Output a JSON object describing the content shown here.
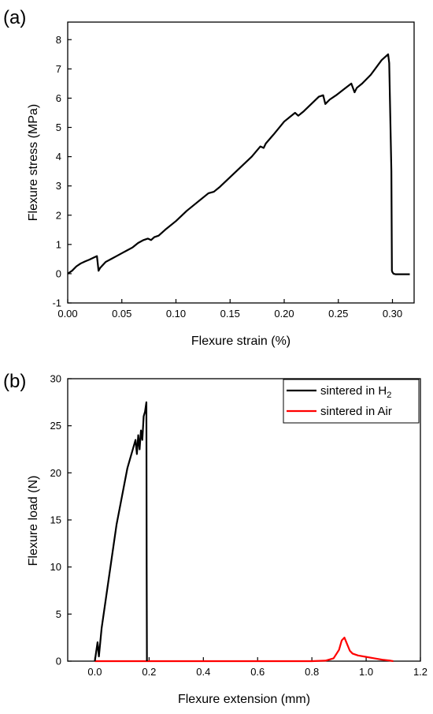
{
  "chart_data": [
    {
      "panel_label": "(a)",
      "type": "line",
      "xlabel": "Flexure strain (%)",
      "ylabel": "Flexure stress (MPa)",
      "xlim": [
        0.0,
        0.32
      ],
      "ylim": [
        -1,
        8.6
      ],
      "xticks": [
        "0.00",
        "0.05",
        "0.10",
        "0.15",
        "0.20",
        "0.25",
        "0.30"
      ],
      "xtick_values": [
        0.0,
        0.05,
        0.1,
        0.15,
        0.2,
        0.25,
        0.3
      ],
      "yticks": [
        "-1",
        "0",
        "1",
        "2",
        "3",
        "4",
        "5",
        "6",
        "7",
        "8"
      ],
      "ytick_values": [
        -1,
        0,
        1,
        2,
        3,
        4,
        5,
        6,
        7,
        8
      ],
      "grid": false,
      "series": [
        {
          "color": "#000000",
          "x": [
            0.0,
            0.004,
            0.008,
            0.012,
            0.016,
            0.02,
            0.024,
            0.027,
            0.0285,
            0.03,
            0.035,
            0.04,
            0.045,
            0.05,
            0.055,
            0.06,
            0.065,
            0.07,
            0.074,
            0.077,
            0.08,
            0.084,
            0.09,
            0.1,
            0.11,
            0.12,
            0.13,
            0.135,
            0.14,
            0.15,
            0.16,
            0.17,
            0.178,
            0.181,
            0.183,
            0.19,
            0.2,
            0.205,
            0.21,
            0.213,
            0.218,
            0.225,
            0.232,
            0.236,
            0.238,
            0.242,
            0.248,
            0.255,
            0.262,
            0.265,
            0.267,
            0.272,
            0.28,
            0.29,
            0.296,
            0.297,
            0.299,
            0.2995,
            0.3,
            0.301,
            0.303,
            0.31,
            0.316
          ],
          "y": [
            0.0,
            0.1,
            0.25,
            0.35,
            0.42,
            0.48,
            0.55,
            0.6,
            0.1,
            0.2,
            0.4,
            0.5,
            0.6,
            0.7,
            0.8,
            0.9,
            1.05,
            1.15,
            1.2,
            1.15,
            1.25,
            1.3,
            1.5,
            1.8,
            2.15,
            2.45,
            2.75,
            2.8,
            2.95,
            3.3,
            3.65,
            4.0,
            4.35,
            4.3,
            4.45,
            4.75,
            5.2,
            5.35,
            5.5,
            5.4,
            5.55,
            5.8,
            6.05,
            6.1,
            5.8,
            5.95,
            6.1,
            6.3,
            6.5,
            6.2,
            6.35,
            6.5,
            6.8,
            7.3,
            7.5,
            7.2,
            3.5,
            0.1,
            0.05,
            0.0,
            -0.02,
            -0.02,
            -0.02
          ]
        }
      ]
    },
    {
      "panel_label": "(b)",
      "type": "line",
      "xlabel": "Flexure extension (mm)",
      "ylabel": "Flexure load (N)",
      "xlim": [
        -0.1,
        1.2
      ],
      "ylim": [
        0,
        30
      ],
      "xticks": [
        "0.0",
        "0.2",
        "0.4",
        "0.6",
        "0.8",
        "1.0",
        "1.2"
      ],
      "xtick_values": [
        0.0,
        0.2,
        0.4,
        0.6,
        0.8,
        1.0,
        1.2
      ],
      "yticks": [
        "0",
        "5",
        "10",
        "15",
        "20",
        "25",
        "30"
      ],
      "ytick_values": [
        0,
        5,
        10,
        15,
        20,
        25,
        30
      ],
      "grid": false,
      "legend": "top-right",
      "series": [
        {
          "name_main": "sintered in H",
          "name_sub": "2",
          "color": "#000000",
          "x": [
            0.0,
            0.005,
            0.01,
            0.015,
            0.02,
            0.025,
            0.03,
            0.04,
            0.05,
            0.06,
            0.07,
            0.08,
            0.09,
            0.1,
            0.11,
            0.12,
            0.13,
            0.14,
            0.15,
            0.155,
            0.16,
            0.165,
            0.17,
            0.175,
            0.18,
            0.185,
            0.19,
            0.191,
            0.192
          ],
          "y": [
            0.0,
            1.0,
            2.0,
            0.5,
            2.0,
            3.5,
            4.5,
            6.5,
            8.5,
            10.5,
            12.5,
            14.5,
            16.0,
            17.5,
            19.0,
            20.5,
            21.5,
            22.5,
            23.5,
            22.0,
            24.0,
            22.5,
            24.5,
            23.5,
            26.0,
            26.5,
            27.5,
            10.0,
            0.0
          ]
        },
        {
          "name": "sintered in Air",
          "color": "#ff0000",
          "x": [
            0.0,
            0.2,
            0.4,
            0.6,
            0.8,
            0.85,
            0.88,
            0.9,
            0.91,
            0.92,
            0.93,
            0.94,
            0.95,
            0.97,
            1.0,
            1.03,
            1.06,
            1.09,
            1.1
          ],
          "y": [
            0.0,
            0.0,
            0.0,
            0.0,
            0.0,
            0.05,
            0.3,
            1.2,
            2.2,
            2.5,
            1.8,
            1.1,
            0.8,
            0.6,
            0.45,
            0.3,
            0.15,
            0.05,
            0.0
          ]
        }
      ]
    }
  ]
}
